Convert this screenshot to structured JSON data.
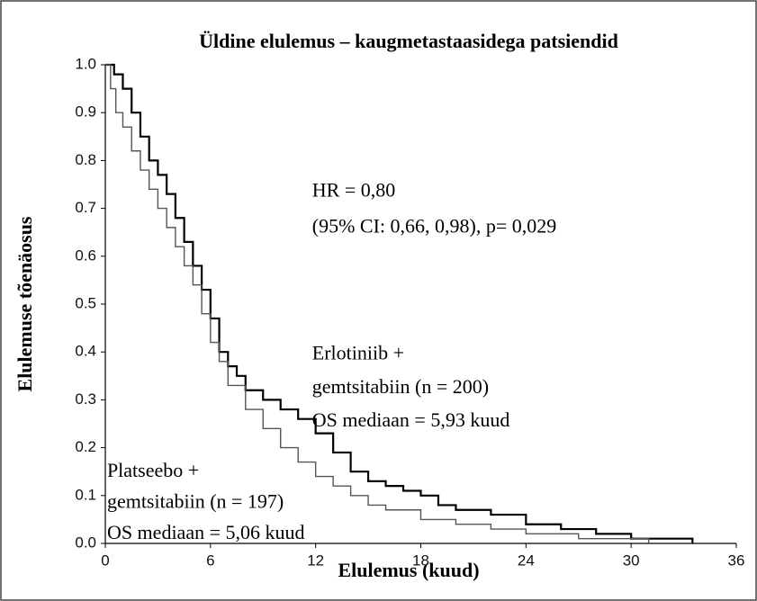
{
  "chart_data": {
    "type": "step",
    "title": "Üldine elulemus – kaugmetastaasidega patsiendid",
    "x_label": "Elulemus (kuud)",
    "y_label": "Elulemuse tõenäosus",
    "xlim": [
      0,
      36
    ],
    "xticks": [
      0,
      6,
      12,
      18,
      24,
      30,
      36
    ],
    "ylim": [
      0,
      1
    ],
    "yticks": [
      {
        "value": 0,
        "label": "0.0"
      },
      0.1,
      0.2,
      0.3,
      0.4,
      0.5,
      0.6,
      0.7,
      0.8,
      0.9,
      {
        "value": 1,
        "label": "1.0"
      }
    ],
    "annotations": [
      {
        "text": "HR = 0,80",
        "x": 11.8,
        "y": 0.715
      },
      {
        "text": "(95% CI: 0,66, 0,98), p= 0,029",
        "x": 11.8,
        "y": 0.64
      },
      {
        "text": "Erlotiniib +",
        "x": 11.8,
        "y": 0.375
      },
      {
        "text": "gemtsitabiin (n = 200)",
        "x": 11.8,
        "y": 0.305
      },
      {
        "text": "OS mediaan = 5,93 kuud",
        "x": 11.8,
        "y": 0.235
      },
      {
        "text": "Platseebo +",
        "x": 0.1,
        "y": 0.13
      },
      {
        "text": "gemtsitabiin (n = 197)",
        "x": 0.1,
        "y": 0.065
      },
      {
        "text": "OS mediaan = 5,06 kuud",
        "x": 0.1,
        "y": 0.0
      }
    ],
    "series": [
      {
        "name": "Erlotiniib + gemtsitabiin",
        "color": "#000000",
        "x": [
          0,
          0.5,
          1,
          1.5,
          2,
          2.5,
          3,
          3.5,
          4,
          4.5,
          5,
          5.5,
          6,
          6.5,
          7,
          7.5,
          8,
          9,
          10,
          11,
          12,
          13,
          14,
          15,
          16,
          17,
          18,
          19,
          20,
          22,
          24,
          26,
          28,
          30,
          33.5
        ],
        "values": [
          1.0,
          0.98,
          0.95,
          0.9,
          0.85,
          0.8,
          0.77,
          0.73,
          0.68,
          0.63,
          0.58,
          0.53,
          0.47,
          0.4,
          0.37,
          0.35,
          0.32,
          0.3,
          0.28,
          0.26,
          0.23,
          0.19,
          0.15,
          0.13,
          0.12,
          0.11,
          0.1,
          0.08,
          0.07,
          0.06,
          0.04,
          0.03,
          0.02,
          0.01,
          0.0
        ]
      },
      {
        "name": "Platseebo + gemtsitabiin",
        "color": "#555555",
        "x": [
          0,
          0.3,
          0.6,
          1,
          1.5,
          2,
          2.5,
          3,
          3.5,
          4,
          4.5,
          5,
          5.5,
          6,
          6.5,
          7,
          8,
          9,
          10,
          11,
          12,
          13,
          14,
          15,
          16,
          18,
          20,
          22,
          24,
          27,
          31
        ],
        "values": [
          1.0,
          0.95,
          0.9,
          0.87,
          0.82,
          0.78,
          0.74,
          0.7,
          0.66,
          0.62,
          0.58,
          0.54,
          0.48,
          0.42,
          0.38,
          0.33,
          0.28,
          0.24,
          0.2,
          0.17,
          0.14,
          0.12,
          0.1,
          0.08,
          0.07,
          0.05,
          0.04,
          0.03,
          0.02,
          0.01,
          0.0
        ]
      }
    ]
  }
}
